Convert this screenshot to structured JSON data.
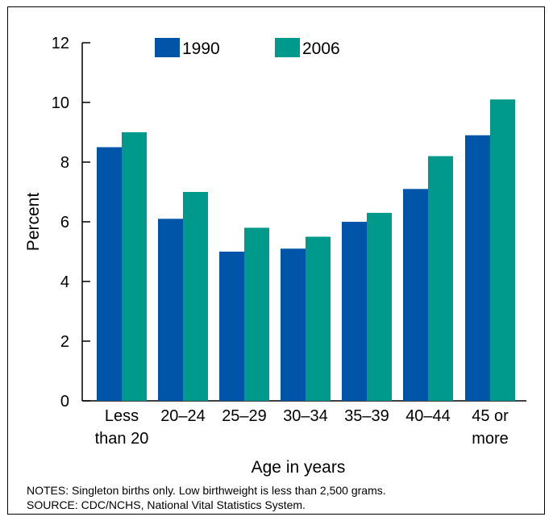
{
  "chart_data": {
    "type": "bar",
    "categories": [
      [
        "Less",
        "than 20"
      ],
      [
        "20–24"
      ],
      [
        "25–29"
      ],
      [
        "30–34"
      ],
      [
        "35–39"
      ],
      [
        "40–44"
      ],
      [
        "45 or",
        "more"
      ]
    ],
    "series": [
      {
        "name": "1990",
        "color": "#0055a8",
        "values": [
          8.5,
          6.1,
          5.0,
          5.1,
          6.0,
          7.1,
          8.9
        ]
      },
      {
        "name": "2006",
        "color": "#009a8c",
        "values": [
          9.0,
          7.0,
          5.8,
          5.5,
          6.3,
          8.2,
          10.1
        ]
      }
    ],
    "xlabel": "Age in years",
    "ylabel": "Percent",
    "ylim": [
      0,
      12
    ],
    "yticks": [
      0,
      2,
      4,
      6,
      8,
      10,
      12
    ],
    "grid": false,
    "legend": "top-center"
  },
  "notes": {
    "notes_line": "NOTES: Singleton births only.  Low birthweight is less than 2,500 grams.",
    "source_line": "SOURCE: CDC/NCHS, National Vital Statistics System."
  }
}
